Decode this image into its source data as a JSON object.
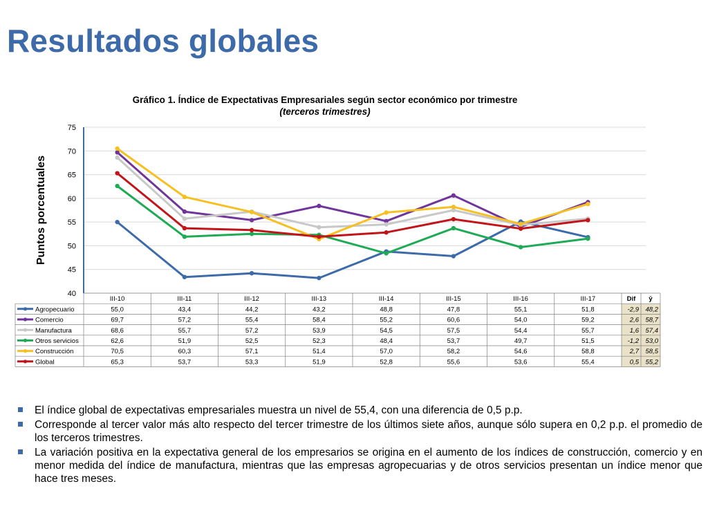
{
  "page": {
    "title": "Resultados globales"
  },
  "chart_data": {
    "type": "line",
    "title": "Gráfico 1. Índice de Expectativas Empresariales según sector  económico por trimestre",
    "subtitle": "(terceros  trimestres)",
    "ylabel": "Puntos porcentuales",
    "ylim": [
      40,
      75
    ],
    "yticks": [
      40,
      45,
      50,
      55,
      60,
      65,
      70,
      75
    ],
    "grid": true,
    "legend": "data-table",
    "categories": [
      "III-10",
      "III-11",
      "III-12",
      "III-13",
      "III-14",
      "III-15",
      "III-16",
      "III-17"
    ],
    "extra_headers": [
      "Dif",
      "ȳ"
    ],
    "series": [
      {
        "name": "Agropecuario",
        "color": "#3d6aa8",
        "values": [
          55.0,
          43.4,
          44.2,
          43.2,
          48.8,
          47.8,
          55.1,
          51.8
        ],
        "labels": [
          "55,0",
          "43,4",
          "44,2",
          "43,2",
          "48,8",
          "47,8",
          "55,1",
          "51,8"
        ],
        "dif": "-2,9",
        "avg": "48,2"
      },
      {
        "name": "Comercio",
        "color": "#70349a",
        "values": [
          69.7,
          57.2,
          55.4,
          58.4,
          55.2,
          60.6,
          54.0,
          59.2
        ],
        "labels": [
          "69,7",
          "57,2",
          "55,4",
          "58,4",
          "55,2",
          "60,6",
          "54,0",
          "59,2"
        ],
        "dif": "2,6",
        "avg": "58,7"
      },
      {
        "name": "Manufactura",
        "color": "#c8c8c8",
        "values": [
          68.6,
          55.7,
          57.2,
          53.9,
          54.5,
          57.5,
          54.4,
          55.7
        ],
        "labels": [
          "68,6",
          "55,7",
          "57,2",
          "53,9",
          "54,5",
          "57,5",
          "54,4",
          "55,7"
        ],
        "dif": "1,6",
        "avg": "57,4"
      },
      {
        "name": "Otros servicios",
        "color": "#1faa55",
        "values": [
          62.6,
          51.9,
          52.5,
          52.3,
          48.4,
          53.7,
          49.7,
          51.5
        ],
        "labels": [
          "62,6",
          "51,9",
          "52,5",
          "52,3",
          "48,4",
          "53,7",
          "49,7",
          "51,5"
        ],
        "dif": "-1,2",
        "avg": "53,0"
      },
      {
        "name": "Construcción",
        "color": "#f5c023",
        "values": [
          70.5,
          60.3,
          57.1,
          51.4,
          57.0,
          58.2,
          54.6,
          58.8
        ],
        "labels": [
          "70,5",
          "60,3",
          "57,1",
          "51,4",
          "57,0",
          "58,2",
          "54,6",
          "58,8"
        ],
        "dif": "2,7",
        "avg": "58,5"
      },
      {
        "name": "Global",
        "color": "#c0161b",
        "values": [
          65.3,
          53.7,
          53.3,
          51.9,
          52.8,
          55.6,
          53.6,
          55.4
        ],
        "labels": [
          "65,3",
          "53,7",
          "53,3",
          "51,9",
          "52,8",
          "55,6",
          "53,6",
          "55,4"
        ],
        "dif": "0,5",
        "avg": "55,2"
      }
    ],
    "accent_colors": {
      "title": "#3d6aa8",
      "dif_column_bg": "#e9e1c8"
    }
  },
  "bullets": [
    "El índice global de expectativas empresariales muestra un nivel de 55,4, con una diferencia de 0,5 p.p.",
    "Corresponde al tercer valor más alto respecto del tercer trimestre de los últimos siete años, aunque sólo supera en 0,2 p.p. el promedio de los terceros trimestres.",
    "La variación positiva en la expectativa general de los empresarios se origina en el aumento de los índices de construcción, comercio y en menor medida del índice de manufactura, mientras que las empresas agropecuarias y de otros servicios presentan un índice menor que hace tres meses."
  ]
}
